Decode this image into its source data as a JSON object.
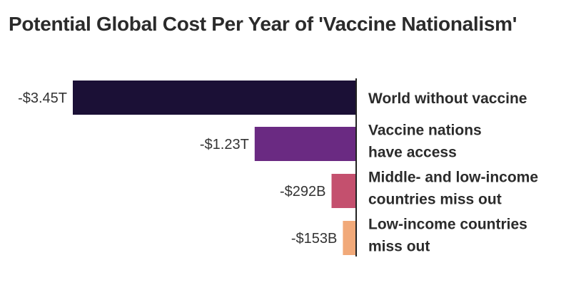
{
  "chart_data": {
    "type": "bar",
    "orientation": "horizontal",
    "title": "Potential Global Cost Per Year of 'Vaccine Nationalism'",
    "categories": [
      "World without vaccine",
      "Vaccine nations have access",
      "Middle- and low-income countries miss out",
      "Low-income countries miss out"
    ],
    "category_lines": [
      [
        "World without vaccine"
      ],
      [
        "Vaccine nations",
        "have access"
      ],
      [
        "Middle- and low-income",
        "countries miss out"
      ],
      [
        "Low-income countries",
        "miss out"
      ]
    ],
    "values": [
      -3450,
      -1230,
      -292,
      -153
    ],
    "unit": "billion USD",
    "data_labels": [
      "-$3.45T",
      "-$1.23T",
      "-$292B",
      "-$153B"
    ],
    "colors": [
      "#1b1036",
      "#6a2a82",
      "#c4506e",
      "#f1a979"
    ],
    "grid": false,
    "legend": "none"
  }
}
